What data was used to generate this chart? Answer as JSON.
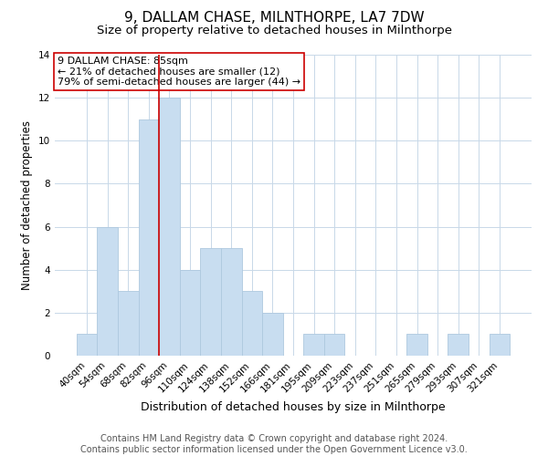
{
  "title": "9, DALLAM CHASE, MILNTHORPE, LA7 7DW",
  "subtitle": "Size of property relative to detached houses in Milnthorpe",
  "xlabel": "Distribution of detached houses by size in Milnthorpe",
  "ylabel": "Number of detached properties",
  "bin_labels": [
    "40sqm",
    "54sqm",
    "68sqm",
    "82sqm",
    "96sqm",
    "110sqm",
    "124sqm",
    "138sqm",
    "152sqm",
    "166sqm",
    "181sqm",
    "195sqm",
    "209sqm",
    "223sqm",
    "237sqm",
    "251sqm",
    "265sqm",
    "279sqm",
    "293sqm",
    "307sqm",
    "321sqm"
  ],
  "bar_heights": [
    1,
    6,
    3,
    11,
    12,
    4,
    5,
    5,
    3,
    2,
    0,
    1,
    1,
    0,
    0,
    0,
    1,
    0,
    1,
    0,
    1
  ],
  "bar_color": "#c8ddf0",
  "bar_edge_color": "#aec8df",
  "vline_x": 3.5,
  "vline_color": "#cc0000",
  "ylim": [
    0,
    14
  ],
  "yticks": [
    0,
    2,
    4,
    6,
    8,
    10,
    12,
    14
  ],
  "annotation_title": "9 DALLAM CHASE: 85sqm",
  "annotation_line1": "← 21% of detached houses are smaller (12)",
  "annotation_line2": "79% of semi-detached houses are larger (44) →",
  "annotation_box_color": "#ffffff",
  "annotation_box_edge": "#cc0000",
  "footer_line1": "Contains HM Land Registry data © Crown copyright and database right 2024.",
  "footer_line2": "Contains public sector information licensed under the Open Government Licence v3.0.",
  "bg_color": "#ffffff",
  "grid_color": "#c8d8e8",
  "title_fontsize": 11,
  "subtitle_fontsize": 9.5,
  "xlabel_fontsize": 9,
  "ylabel_fontsize": 8.5,
  "tick_fontsize": 7.5,
  "annot_fontsize": 8,
  "footer_fontsize": 7
}
